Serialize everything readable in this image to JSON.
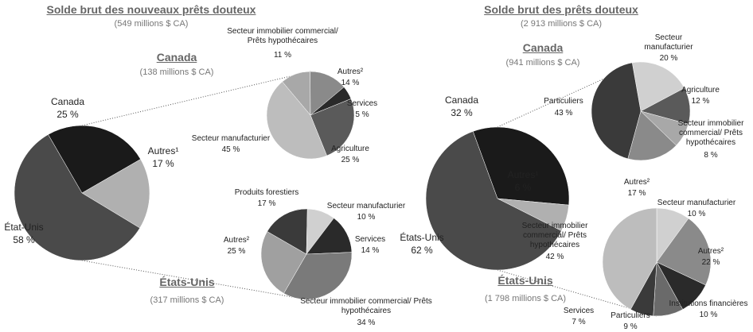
{
  "chart_data": [
    {
      "type": "pie",
      "title": "Solde brut des nouveaux prêts douteux",
      "subtitle": "(549 millions $ CA)",
      "categories": [
        "Canada",
        "Autres¹",
        "État-Unis"
      ],
      "values": [
        25,
        17,
        58
      ],
      "value_labels": [
        "25 %",
        "17 %",
        "58 %"
      ],
      "colors": [
        "#1a1a1a",
        "#b0b0b0",
        "#4a4a4a"
      ]
    },
    {
      "type": "pie",
      "title": "Canada",
      "subtitle": "(138 millions $ CA)",
      "categories": [
        "Secteur immobilier commercial/ Prêts hypothécaires",
        "Autres²",
        "Services",
        "Agriculture",
        "Secteur manufacturier"
      ],
      "values": [
        11,
        14,
        5,
        25,
        45
      ],
      "value_labels": [
        "11 %",
        "14 %",
        "5 %",
        "25 %",
        "45 %"
      ],
      "colors": [
        "#a8a8a8",
        "#8a8a8a",
        "#2a2a2a",
        "#5a5a5a",
        "#bdbdbd"
      ]
    },
    {
      "type": "pie",
      "title": "États-Unis",
      "subtitle": "(317 millions $ CA)",
      "categories": [
        "Produits forestiers",
        "Secteur manufacturier",
        "Services",
        "Secteur immobilier commercial/ Prêts hypothécaires",
        "Autres²"
      ],
      "values": [
        17,
        10,
        14,
        34,
        25
      ],
      "value_labels": [
        "17 %",
        "10 %",
        "14 %",
        "34 %",
        "25 %"
      ],
      "colors": [
        "#3a3a3a",
        "#d0d0d0",
        "#2a2a2a",
        "#7a7a7a",
        "#a0a0a0"
      ]
    },
    {
      "type": "pie",
      "title": "Solde brut des prêts douteux",
      "subtitle": "(2 913 millions $ CA)",
      "categories": [
        "Canada",
        "Autres¹",
        "États-Unis"
      ],
      "values": [
        32,
        6,
        62
      ],
      "value_labels": [
        "32 %",
        "6 %",
        "62 %"
      ],
      "colors": [
        "#1a1a1a",
        "#b0b0b0",
        "#4a4a4a"
      ]
    },
    {
      "type": "pie",
      "title": "Canada",
      "subtitle": "(941 millions $ CA)",
      "categories": [
        "Secteur manufacturier",
        "Agriculture",
        "Secteur immobilier commercial/ Prêts hypothécaires",
        "Autres²",
        "Particuliers"
      ],
      "values": [
        20,
        12,
        8,
        17,
        43
      ],
      "value_labels": [
        "20 %",
        "12 %",
        "8 %",
        "17 %",
        "43 %"
      ],
      "colors": [
        "#d0d0d0",
        "#5a5a5a",
        "#a8a8a8",
        "#8a8a8a",
        "#3a3a3a"
      ]
    },
    {
      "type": "pie",
      "title": "États-Unis",
      "subtitle": "(1 798 millions $ CA)",
      "categories": [
        "Secteur manufacturier",
        "Autres²",
        "Institutions financières",
        "Particuliers",
        "Services",
        "Secteur immobilier commercial/ Prêts hypothécaires"
      ],
      "values": [
        10,
        22,
        10,
        9,
        7,
        42
      ],
      "value_labels": [
        "10 %",
        "22 %",
        "10 %",
        "9 %",
        "7 %",
        "42 %"
      ],
      "colors": [
        "#d0d0d0",
        "#8a8a8a",
        "#2a2a2a",
        "#6a6a6a",
        "#3a3a3a",
        "#bdbdbd"
      ]
    }
  ]
}
